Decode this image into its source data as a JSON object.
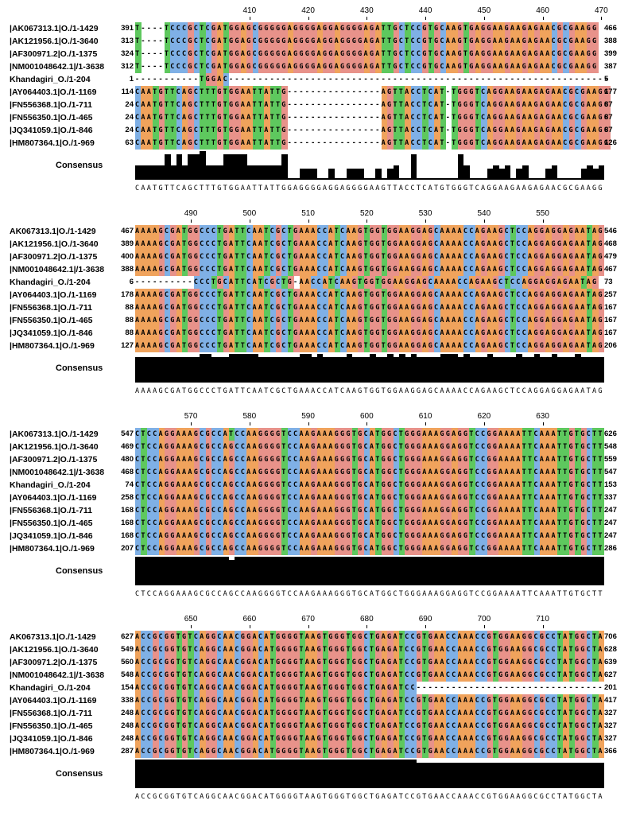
{
  "colors": {
    "A": "#f0a35c",
    "C": "#7fb0e6",
    "G": "#e8928a",
    "T": "#5ec85e"
  },
  "consensus_label": "Consensus",
  "panels": [
    {
      "ticks": [
        "410",
        "420",
        "430",
        "440",
        "450",
        "460",
        "470"
      ],
      "rows": [
        {
          "label": "|AK067313.1|O./1-1429",
          "start": "391",
          "seq": "T----TCCCGCTCGATGGAGCGGGGGAGGGGAGGAGGGGAGATTGCTCCGTGCAAGTGAGGAAGAAGAGAACGCGAAGG",
          "end": "466"
        },
        {
          "label": "|AK121956.1|O./1-3640",
          "start": "313",
          "seq": "T----TCCCGCTCGATGGAGCGGGGGAGGGGAGGAGGGGAGATTGCTCCGTGCAAGTGAGGAAGAAGAGAACGCGAAGG",
          "end": "388"
        },
        {
          "label": "|AF300971.2|O./1-1375",
          "start": "324",
          "seq": "T----TCCCGCTCGATGGAGCGGGGGAGGGGAGGAGGGGAGATTGCTCCGTGCAAGTGAGGAAGAAGAGAACGCGAAGG",
          "end": "399"
        },
        {
          "label": "|NM001048642.1|/1-3638",
          "start": "312",
          "seq": "T----TCCCGCTCGATGGAGCGGGGGAGGGGAGGAGGGGAGATTGCTCCGTGCAAGTGAGGAAGAAGAGAACGCGAAGG",
          "end": "387"
        },
        {
          "label": "Khandagiri_O./1-204",
          "start": "1",
          "seq": "-----------TGGAC-----------------------------------------------------------------",
          "end": "5"
        },
        {
          "label": "|AY064403.1|O./1-1169",
          "start": "114",
          "seq": "CAATGTTCAGCTTTGTGGAATTATTG----------------AGTTACCTCAT-TGGGTCAGGAAGAAGAGAACGCGAAGG",
          "end": "177"
        },
        {
          "label": "|FN556368.1|O./1-711",
          "start": "24",
          "seq": "CAATGTTCAGCTTTGTGGAATTATTG----------------AGTTACCTCAT-TGGGTCAGGAAGAAGAGAACGCGAAGG",
          "end": "87"
        },
        {
          "label": "|FN556350.1|O./1-465",
          "start": "24",
          "seq": "CAATGTTCAGCTTTGTGGAATTATTG----------------AGTTACCTCAT-TGGGTCAGGAAGAAGAGAACGCGAAGG",
          "end": "87"
        },
        {
          "label": "|JQ341059.1|O./1-846",
          "start": "24",
          "seq": "CAATGTTCAGCTTTGTGGAATTATTG----------------AGTTACCTCAT-TGGGTCAGGAAGAAGAGAACGCGAAGG",
          "end": "87"
        },
        {
          "label": "|HM807364.1|O./1-969",
          "start": "63",
          "seq": "CAATGTTCAGCTTTGTGGAATTATTG----------------AGTTACCTCAT-TGGGTCAGGAAGAAGAGAACGCGAAGG",
          "end": "126"
        }
      ],
      "consensus": "CAATGTTCAGCTTTGTGGAATTATTGGAGGGGAGGAGGGGAAGTTACCTCATGTGGGTCAGGAAGAAGAGAACGCGAAGG"
    },
    {
      "ticks": [
        "490",
        "500",
        "510",
        "520",
        "530",
        "540",
        "550"
      ],
      "rows": [
        {
          "label": "AK067313.1|O./1-1429",
          "start": "467",
          "seq": "AAAAGCGATGGCCCTGATTCAATCGCTGAAACCATCAAGTGGTGGAAGGAGCAAAACCAGAAGCTCCAGGAGGAGAATAG",
          "end": "546"
        },
        {
          "label": "|AK121956.1|O./1-3640",
          "start": "389",
          "seq": "AAAAGCGATGGCCCTGATTCAATCGCTGAAACCATCAAGTGGTGGAAGGAGCAAAACCAGAAGCTCCAGGAGGAGAATAG",
          "end": "468"
        },
        {
          "label": "|AF300971.2|O./1-1375",
          "start": "400",
          "seq": "AAAAGCGATGGCCCTGATTCAATCGCTGAAACCATCAAGTGGTGGAAGGAGCAAAACCAGAAGCTCCAGGAGGAGAATAG",
          "end": "479"
        },
        {
          "label": "|NM001048642.1|/1-3638",
          "start": "388",
          "seq": "AAAAGCGATGGCCCTGATTCAATCGCTGAAACCATCAAGTGGTGGAAGGAGCAAAACCAGAAGCTCCAGGAGGAGAATAG",
          "end": "467"
        },
        {
          "label": "Khandagiri_O./1-204",
          "start": "6",
          "seq": "----------CCCTGCATTCATCGCTG-AACCATCAAGTGGTGGAAGGAGCAAAACCAGAAGCTCCAGGAGGAGAATAG",
          "end": "73"
        },
        {
          "label": "|AY064403.1|O./1-1169",
          "start": "178",
          "seq": "AAAAGCGATGGCCCTGATTCAATCGCTGAAACCATCAAGTGGTGGAAGGAGCAAAACCAGAAGCTCCAGGAGGAGAATAG",
          "end": "257"
        },
        {
          "label": "|FN556368.1|O./1-711",
          "start": "88",
          "seq": "AAAAGCGATGGCCCTGATTCAATCGCTGAAACCATCAAGTGGTGGAAGGAGCAAAACCAGAAGCTCCAGGAGGAGAATAG",
          "end": "167"
        },
        {
          "label": "|FN556350.1|O./1-465",
          "start": "88",
          "seq": "AAAAGCGATGGCCCTGATTCAATCGCTGAAACCATCAAGTGGTGGAAGGAGCAAAACCAGAAGCTCCAGGAGGAGAATAG",
          "end": "167"
        },
        {
          "label": "|JQ341059.1|O./1-846",
          "start": "88",
          "seq": "AAAAGCGATGGCCCTGATTCAATCGCTGAAACCATCAAGTGGTGGAAGGAGCAAAACCAGAAGCTCCAGGAGGAGAATAG",
          "end": "167"
        },
        {
          "label": "|HM807364.1|O./1-969",
          "start": "127",
          "seq": "AAAAGCGATGGCCCTGATTCAATCGCTGAAACCATCAAGTGGTGGAAGGAGCAAAACCAGAAGCTCCAGGAGGAGAATAG",
          "end": "206"
        }
      ],
      "consensus": "AAAAGCGATGGCCCTGATTCAATCGCTGAAACCATCAAGTGGTGGAAGGAGCAAAACCAGAAGCTCCAGGAGGAGAATAG"
    },
    {
      "ticks": [
        "570",
        "580",
        "590",
        "600",
        "610",
        "620",
        "630"
      ],
      "rows": [
        {
          "label": "|AK067313.1|O./1-1429",
          "start": "547",
          "seq": "CTCCAGGAAAGCGCCATCCAAGGGGTCCAAGAAAGGGTGCATGGCTGGGAAAGGAGGTCCGGAAAATTCAAATTGTGCTT",
          "end": "626"
        },
        {
          "label": "|AK121956.1|O./1-3640",
          "start": "469",
          "seq": "CTCCAGGAAAGCGCCAGCCAAGGGGTCCAAGAAAGGGTGCATGGCTGGGAAAGGAGGTCCGGAAAATTCAAATTGTGCTT",
          "end": "548"
        },
        {
          "label": "|AF300971.2|O./1-1375",
          "start": "480",
          "seq": "CTCCAGGAAAGCGCCAGCCAAGGGGTCCAAGAAAGGGTGCATGGCTGGGAAAGGAGGTCCGGAAAATTCAAATTGTGCTT",
          "end": "559"
        },
        {
          "label": "|NM001048642.1|/1-3638",
          "start": "468",
          "seq": "CTCCAGGAAAGCGCCAGCCAAGGGGTCCAAGAAAGGGTGCATGGCTGGGAAAGGAGGTCCGGAAAATTCAAATTGTGCTT",
          "end": "547"
        },
        {
          "label": "Khandagiri_O./1-204",
          "start": "74",
          "seq": "CTCCAGGAAAGCGCCAGCCAAGGGGTCCAAGAAAGGGTGCATGGCTGGGAAAGGAGGTCCGGAAAATTCAAATTGTGCTT",
          "end": "153"
        },
        {
          "label": "|AY064403.1|O./1-1169",
          "start": "258",
          "seq": "CTCCAGGAAAGCGCCAGCCAAGGGGTCCAAGAAAGGGTGCATGGCTGGGAAAGGAGGTCCGGAAAATTCAAATTGTGCTT",
          "end": "337"
        },
        {
          "label": "|FN556368.1|O./1-711",
          "start": "168",
          "seq": "CTCCAGGAAAGCGCCAGCCAAGGGGTCCAAGAAAGGGTGCATGGCTGGGAAAGGAGGTCCGGAAAATTCAAATTGTGCTT",
          "end": "247"
        },
        {
          "label": "|FN556350.1|O./1-465",
          "start": "168",
          "seq": "CTCCAGGAAAGCGCCAGCCAAGGGGTCCAAGAAAGGGTGCATGGCTGGGAAAGGAGGTCCGGAAAATTCAAATTGTGCTT",
          "end": "247"
        },
        {
          "label": "|JQ341059.1|O./1-846",
          "start": "168",
          "seq": "CTCCAGGAAAGCGCCAGCCAAGGGGTCCAAGAAAGGGTGCATGGCTGGGAAAGGAGGTCCGGAAAATTCAAATTGTGCTT",
          "end": "247"
        },
        {
          "label": "|HM807364.1|O./1-969",
          "start": "207",
          "seq": "CTCCAGGAAAGCGCCAGCCAAGGGGTCCAAGAAAGGGTGCATGGCTGGGAAAGGAGGTCCGGAAAATTCAAATTGTGCTT",
          "end": "286"
        }
      ],
      "consensus": "CTCCAGGAAAGCGCCAGCCAAGGGGTCCAAGAAAGGGTGCATGGCTGGGAAAGGAGGTCCGGAAAATTCAAATTGTGCTT"
    },
    {
      "ticks": [
        "650",
        "660",
        "670",
        "680",
        "690",
        "700",
        "710"
      ],
      "rows": [
        {
          "label": "AK067313.1|O./1-1429",
          "start": "627",
          "seq": "ACCGCGGTGTCAGGCAACGGACATGGGGTAAGTGGGTGGCTGAGATCCGTGAACCAAACCGTGGAAGGCGCCTATGGCTA",
          "end": "706"
        },
        {
          "label": "|AK121956.1|O./1-3640",
          "start": "549",
          "seq": "ACCGCGGTGTCAGGCAACGGACATGGGGTAAGTGGGTGGCTGAGATCCGTGAACCAAACCGTGGAAGGCGCCTATGGCTA",
          "end": "628"
        },
        {
          "label": "|AF300971.2|O./1-1375",
          "start": "560",
          "seq": "ACCGCGGTGTCAGGCAACGGACATGGGGTAAGTGGGTGGCTGAGATCCGTGAACCAAACCGTGGAAGGCGCCTATGGCTA",
          "end": "639"
        },
        {
          "label": "|NM001048642.1|/1-3638",
          "start": "548",
          "seq": "ACCGCGGTGTCAGGCAACGGACATGGGGTAAGTGGGTGGCTGAGATCCGTGAACCAAACCGTGGAAGGCGCCTATGGCTA",
          "end": "627"
        },
        {
          "label": "Khandagiri_O./1-204",
          "start": "154",
          "seq": "ACCGCGGTGTCAGGCAACGGACATGGGGTAAGTGGGTGGCTGAGATCC--------------------------------",
          "end": "201"
        },
        {
          "label": "|AY064403.1|O./1-1169",
          "start": "338",
          "seq": "ACCGCGGTGTCAGGCAACGGACATGGGGTAAGTGGGTGGCTGAGATCCGTGAACCAAACCGTGGAAGGCGCCTATGGCTA",
          "end": "417"
        },
        {
          "label": "|FN556368.1|O./1-711",
          "start": "248",
          "seq": "ACCGCGGTGTCAGGCAACGGACATGGGGTAAGTGGGTGGCTGAGATCCGTGAACCAAACCGTGGAAGGCGCCTATGGCTA",
          "end": "327"
        },
        {
          "label": "|FN556350.1|O./1-465",
          "start": "248",
          "seq": "ACCGCGGTGTCAGGCAACGGACATGGGGTAAGTGGGTGGCTGAGATCCGTGAACCAAACCGTGGAAGGCGCCTATGGCTA",
          "end": "327"
        },
        {
          "label": "|JQ341059.1|O./1-846",
          "start": "248",
          "seq": "ACCGCGGTGTCAGGCAACGGACATGGGGTAAGTGGGTGGCTGAGATCCGTGAACCAAACCGTGGAAGGCGCCTATGGCTA",
          "end": "327"
        },
        {
          "label": "|HM807364.1|O./1-969",
          "start": "287",
          "seq": "ACCGCGGTGTCAGGCAACGGACATGGGGTAAGTGGGTGGCTGAGATCCGTGAACCAAACCGTGGAAGGCGCCTATGGCTA",
          "end": "366"
        }
      ],
      "consensus": "ACCGCGGTGTCAGGCAACGGACATGGGGTAAGTGGGTGGCTGAGATCCGTGAACCAAACCGTGGAAGGCGCCTATGGCTA"
    }
  ]
}
